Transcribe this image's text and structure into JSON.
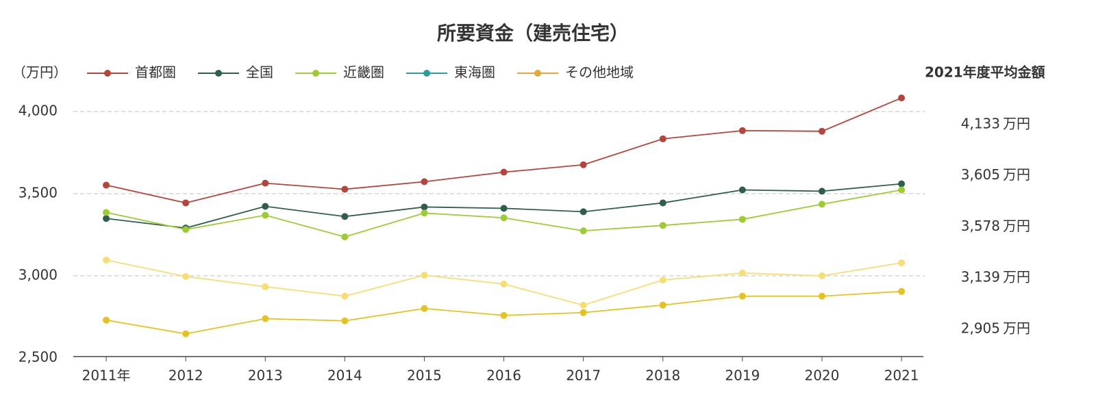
{
  "chart_data": {
    "type": "line",
    "title": "所要資金（建売住宅）",
    "y_unit_label": "（万円）",
    "categories": [
      "2011年",
      "2012",
      "2013",
      "2014",
      "2015",
      "2016",
      "2017",
      "2018",
      "2019",
      "2020",
      "2021"
    ],
    "series": [
      {
        "name": "首都圏",
        "color": "#b5443a",
        "legend_color": "#b5443a",
        "values": [
          3552,
          3444,
          3564,
          3527,
          3573,
          3631,
          3676,
          3834,
          3884,
          3880,
          4083
        ]
      },
      {
        "name": "全国",
        "color": "#2e5e4e",
        "legend_color": "#2e5e4e",
        "values": [
          3349,
          3291,
          3423,
          3361,
          3419,
          3411,
          3390,
          3444,
          3523,
          3515,
          3560
        ]
      },
      {
        "name": "近畿圏",
        "color": "#9ccc30",
        "legend_color": "#9ccc30",
        "values": [
          3386,
          3282,
          3369,
          3237,
          3382,
          3353,
          3274,
          3307,
          3344,
          3436,
          3523
        ]
      },
      {
        "name": "東海圏",
        "color": "#f6de72",
        "legend_color": "#2aa198",
        "values": [
          3096,
          2996,
          2934,
          2876,
          3004,
          2950,
          2821,
          2975,
          3017,
          3000,
          3079
        ]
      },
      {
        "name": "その他地域",
        "color": "#e6c21e",
        "legend_color": "#e3a83a",
        "values": [
          2730,
          2647,
          2739,
          2726,
          2801,
          2759,
          2776,
          2822,
          2876,
          2876,
          2905
        ]
      }
    ],
    "ylim": [
      2500,
      4200
    ],
    "yticks": [
      {
        "value": 2500,
        "label": "2,500"
      },
      {
        "value": 3000,
        "label": "3,000"
      },
      {
        "value": 3500,
        "label": "3,500"
      },
      {
        "value": 4000,
        "label": "4,000"
      }
    ],
    "grid": true,
    "side_panel": {
      "title": "2021年度平均金額",
      "unit": "万円",
      "values": [
        4133,
        3605,
        3578,
        3139,
        2905
      ],
      "value_labels": [
        "4,133",
        "3,605",
        "3,578",
        "3,139",
        "2,905"
      ]
    }
  }
}
